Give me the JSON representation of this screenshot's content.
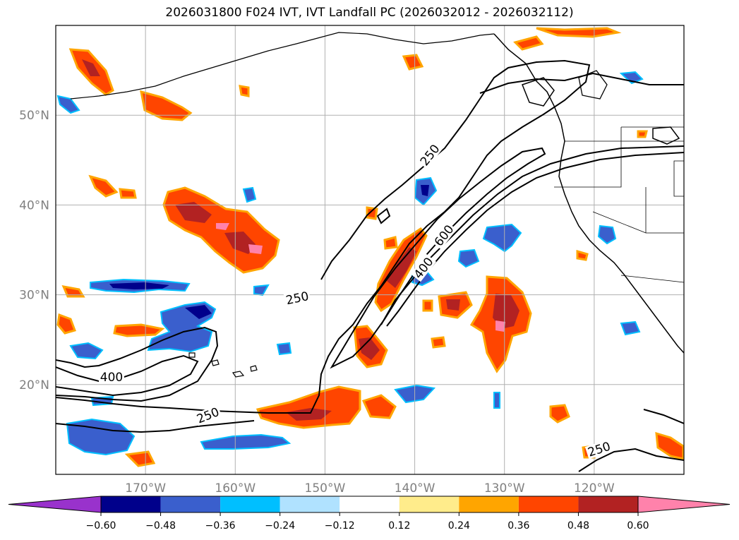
{
  "title": "2026031800 F024 IVT, IVT Landfall PC (2026032012 - 2026032112)",
  "map": {
    "lon_range": [
      -180,
      -110
    ],
    "lat_range": [
      10,
      60
    ],
    "lat_ticks": [
      {
        "value": 20,
        "label": "20°N"
      },
      {
        "value": 30,
        "label": "30°N"
      },
      {
        "value": 40,
        "label": "40°N"
      },
      {
        "value": 50,
        "label": "50°N"
      }
    ],
    "lon_ticks": [
      {
        "value": -170,
        "label": "170°W"
      },
      {
        "value": -160,
        "label": "160°W"
      },
      {
        "value": -150,
        "label": "150°W"
      },
      {
        "value": -140,
        "label": "140°W"
      },
      {
        "value": -130,
        "label": "130°W"
      },
      {
        "value": -120,
        "label": "120°W"
      }
    ],
    "ivt_contours": [
      {
        "value": 250,
        "label": "250"
      },
      {
        "value": 400,
        "label": "400"
      },
      {
        "value": 600,
        "label": "600"
      }
    ],
    "ivt_contour_labels": [
      "250",
      "250",
      "250",
      "250",
      "400",
      "400",
      "600"
    ]
  },
  "colorbar": {
    "levels": [
      "−0.60",
      "−0.48",
      "−0.36",
      "−0.24",
      "−0.12",
      "0.12",
      "0.24",
      "0.36",
      "0.48",
      "0.60"
    ],
    "colors": [
      "#9932cc",
      "#00008b",
      "#3a5fcd",
      "#00bfff",
      "#b0e2ff",
      "#ffffff",
      "#ffec8b",
      "#ffa500",
      "#ff4500",
      "#b22222",
      "#ff82ab"
    ]
  },
  "colors": {
    "coast": "#000000",
    "grid": "#b0b0b0",
    "contour": "#000000"
  }
}
